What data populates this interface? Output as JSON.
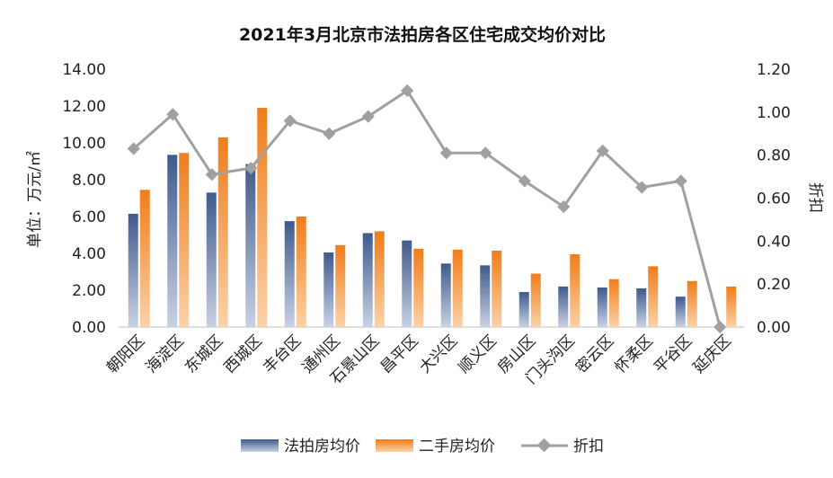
{
  "chart_data": {
    "type": "bar",
    "title": "2021年3月北京市法拍房各区住宅成交均价对比",
    "categories": [
      "朝阳区",
      "海淀区",
      "东城区",
      "西城区",
      "丰台区",
      "通州区",
      "石景山区",
      "昌平区",
      "大兴区",
      "顺义区",
      "房山区",
      "门头沟区",
      "密云区",
      "怀柔区",
      "平谷区",
      "延庆区"
    ],
    "ylabel": "单位：万元/㎡",
    "y2label": "折扣",
    "ylim": [
      0,
      14
    ],
    "y2lim": [
      0,
      1.2
    ],
    "y_ticks": [
      "0.00",
      "2.00",
      "4.00",
      "6.00",
      "8.00",
      "10.00",
      "12.00",
      "14.00"
    ],
    "y2_ticks": [
      "0.00",
      "0.20",
      "0.40",
      "0.60",
      "0.80",
      "1.00",
      "1.20"
    ],
    "series": [
      {
        "name": "法拍房均价",
        "axis": "left",
        "type": "bar",
        "color": "#4a6496",
        "values": [
          6.15,
          9.35,
          7.3,
          8.85,
          5.75,
          4.05,
          5.1,
          4.7,
          3.45,
          3.35,
          1.9,
          2.2,
          2.15,
          2.1,
          1.65,
          0
        ]
      },
      {
        "name": "二手房均价",
        "axis": "right_bar",
        "type": "bar",
        "color": "#f08a2c",
        "values": [
          7.45,
          9.45,
          10.3,
          11.9,
          6.0,
          4.45,
          5.2,
          4.25,
          4.2,
          4.15,
          2.9,
          3.95,
          2.6,
          3.3,
          2.5,
          2.2
        ]
      },
      {
        "name": "折扣",
        "axis": "right",
        "type": "line",
        "color": "#a0a0a0",
        "values": [
          0.83,
          0.99,
          0.71,
          0.74,
          0.96,
          0.9,
          0.98,
          1.1,
          0.81,
          0.81,
          0.68,
          0.56,
          0.82,
          0.65,
          0.68,
          0.0
        ]
      }
    ],
    "legend_position": "bottom",
    "grid": false
  }
}
